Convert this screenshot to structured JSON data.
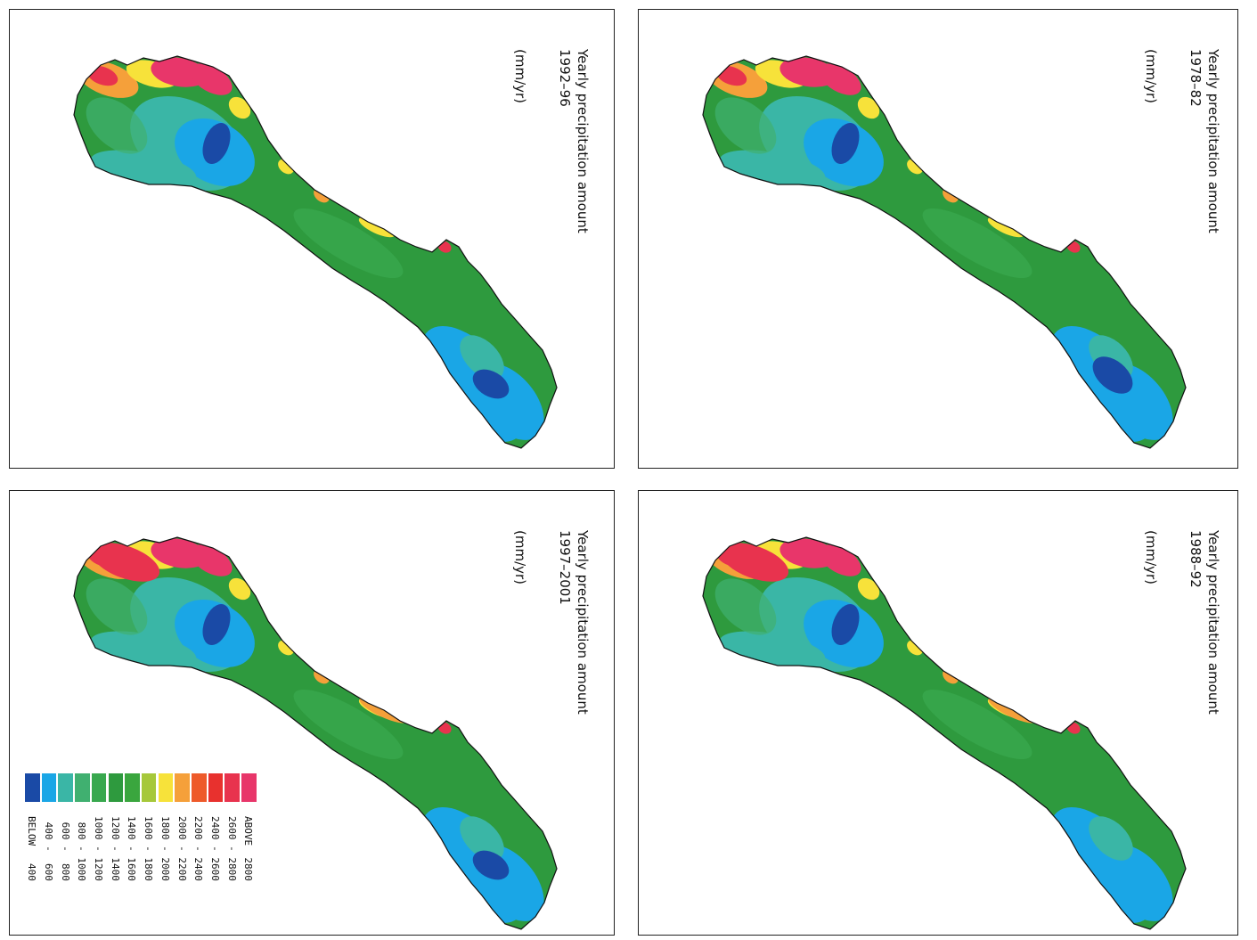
{
  "panels": [
    {
      "id": "p1978",
      "title": "Yearly precipitation amount",
      "period": "1978–82",
      "units": "(mm/yr)"
    },
    {
      "id": "p1992",
      "title": "Yearly precipitation amount",
      "period": "1992–96",
      "units": "(mm/yr)"
    },
    {
      "id": "p1988",
      "title": "Yearly precipitation amount",
      "period": "1988–92",
      "units": "(mm/yr)"
    },
    {
      "id": "p1997",
      "title": "Yearly precipitation amount",
      "period": "1997–2001",
      "units": "(mm/yr)"
    }
  ],
  "legend": {
    "items": [
      {
        "label": "ABOVE  2800",
        "color": "#e8366a"
      },
      {
        "label": "2600 - 2800",
        "color": "#e8334e"
      },
      {
        "label": "2400 - 2600",
        "color": "#e8312e"
      },
      {
        "label": "2200 - 2400",
        "color": "#ee5a2a"
      },
      {
        "label": "2000 - 2200",
        "color": "#f5a03a"
      },
      {
        "label": "1800 - 2000",
        "color": "#f7e23a"
      },
      {
        "label": "1600 - 1800",
        "color": "#a6c83a"
      },
      {
        "label": "1400 - 1600",
        "color": "#3aa63e"
      },
      {
        "label": "1200 - 1400",
        "color": "#2e9a3e"
      },
      {
        "label": "1000 - 1200",
        "color": "#38a84e"
      },
      {
        "label": " 800 - 1000",
        "color": "#40b070"
      },
      {
        "label": " 600 -  800",
        "color": "#3ab6a6"
      },
      {
        "label": " 400 -  600",
        "color": "#1aa6e6"
      },
      {
        "label": "BELOW   400",
        "color": "#1a4aa6"
      }
    ]
  }
}
